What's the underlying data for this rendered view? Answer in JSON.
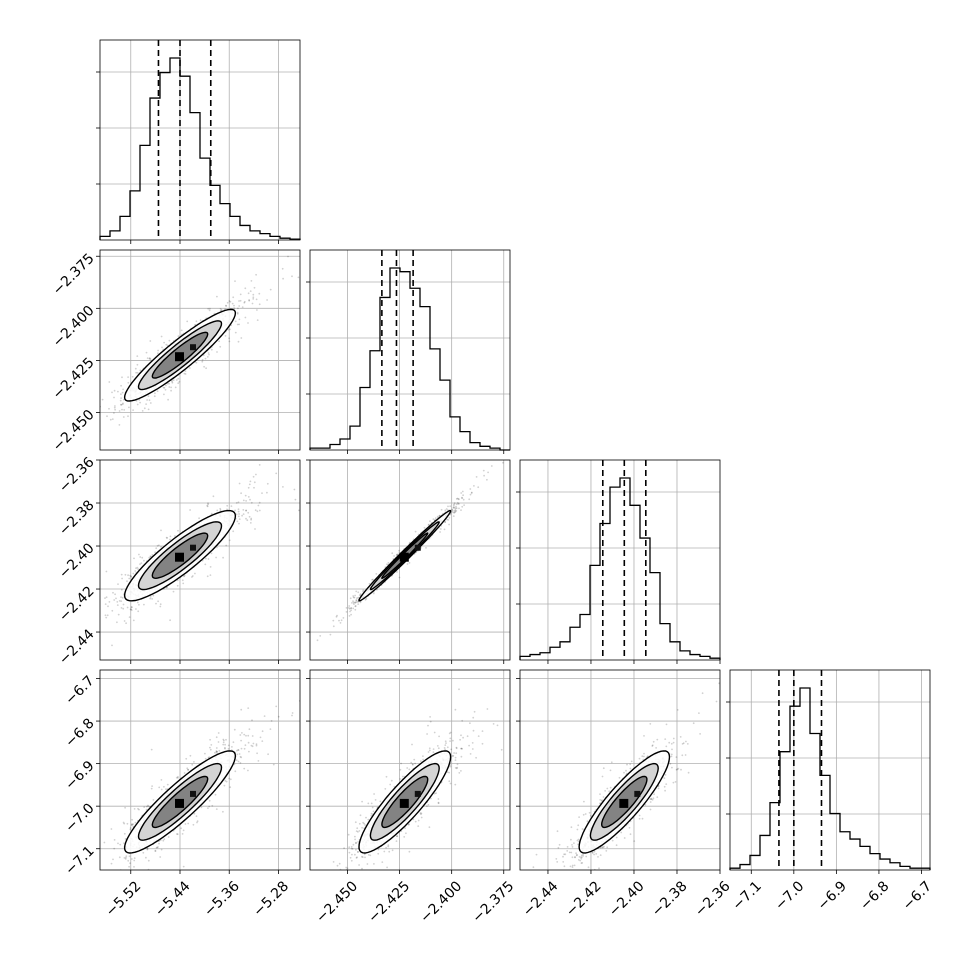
{
  "chart_data": {
    "type": "corner",
    "parameters": [
      {
        "range": [
          -5.57,
          -5.245
        ],
        "ticks": [
          -5.52,
          -5.44,
          -5.36,
          -5.28
        ],
        "tick_labels": [
          "−5.52",
          "−5.44",
          "−5.36",
          "−5.28"
        ],
        "quantiles": [
          -5.475,
          -5.44,
          -5.39
        ],
        "hist": [
          0.02,
          0.05,
          0.13,
          0.27,
          0.52,
          0.78,
          0.92,
          1.0,
          0.9,
          0.7,
          0.45,
          0.3,
          0.2,
          0.13,
          0.08,
          0.05,
          0.035,
          0.02,
          0.01,
          0.005
        ]
      },
      {
        "range": [
          -2.468,
          -2.372
        ],
        "ticks": [
          -2.45,
          -2.425,
          -2.4,
          -2.375
        ],
        "tick_labels": [
          "−2.450",
          "−2.425",
          "−2.400",
          "−2.375"
        ],
        "quantiles": [
          -2.4335,
          -2.4265,
          -2.4185
        ],
        "hist": [
          0.01,
          0.01,
          0.03,
          0.06,
          0.13,
          0.34,
          0.54,
          0.83,
          0.99,
          0.97,
          0.88,
          0.78,
          0.55,
          0.38,
          0.18,
          0.1,
          0.04,
          0.02,
          0.01,
          0.0
        ]
      },
      {
        "range": [
          -2.453,
          -2.36
        ],
        "ticks": [
          -2.44,
          -2.42,
          -2.4,
          -2.38,
          -2.36
        ],
        "tick_labels": [
          "−2.44",
          "−2.42",
          "−2.40",
          "−2.38",
          "−2.36"
        ],
        "quantiles": [
          -2.4145,
          -2.4045,
          -2.3945
        ],
        "hist": [
          0.02,
          0.03,
          0.04,
          0.07,
          0.1,
          0.18,
          0.25,
          0.52,
          0.75,
          0.95,
          1.0,
          0.85,
          0.67,
          0.48,
          0.2,
          0.1,
          0.05,
          0.03,
          0.02,
          0.01
        ]
      },
      {
        "range": [
          -7.15,
          -6.68
        ],
        "ticks": [
          -7.1,
          -7.0,
          -6.9,
          -6.8,
          -6.7
        ],
        "tick_labels": [
          "−7.1",
          "−7.0",
          "−6.9",
          "−6.8",
          "−6.7"
        ],
        "quantiles": [
          -7.035,
          -7.0,
          -6.935
        ],
        "hist": [
          0.01,
          0.03,
          0.08,
          0.19,
          0.37,
          0.65,
          0.9,
          1.0,
          0.75,
          0.52,
          0.31,
          0.21,
          0.17,
          0.13,
          0.09,
          0.06,
          0.04,
          0.02,
          0.01,
          0.01
        ]
      }
    ],
    "pairs": [
      {
        "x": 0,
        "y": 1,
        "mean": [
          -5.44,
          -2.4225
        ],
        "sd": [
          0.045,
          0.011
        ],
        "corr": 0.92
      },
      {
        "x": 0,
        "y": 2,
        "mean": [
          -5.44,
          -2.4045
        ],
        "sd": [
          0.045,
          0.0105
        ],
        "corr": 0.88
      },
      {
        "x": 1,
        "y": 2,
        "mean": [
          -2.4225,
          -2.4045
        ],
        "sd": [
          0.011,
          0.0105
        ],
        "corr": 0.99
      },
      {
        "x": 0,
        "y": 3,
        "mean": [
          -5.44,
          -6.99
        ],
        "sd": [
          0.045,
          0.06
        ],
        "corr": 0.9
      },
      {
        "x": 1,
        "y": 3,
        "mean": [
          -2.4225,
          -6.99
        ],
        "sd": [
          0.011,
          0.06
        ],
        "corr": 0.88
      },
      {
        "x": 2,
        "y": 3,
        "mean": [
          -2.4045,
          -6.99
        ],
        "sd": [
          0.0105,
          0.06
        ],
        "corr": 0.88
      }
    ],
    "grid": true,
    "quantile_lines": "dashed",
    "contour_levels": [
      1,
      1.5,
      2
    ]
  }
}
